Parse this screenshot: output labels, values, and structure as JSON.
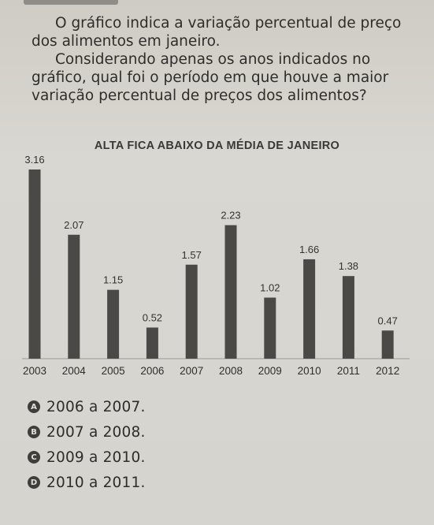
{
  "question": {
    "line1": "O gráfico indica a variação percentual de preço dos alimentos em janeiro.",
    "line2": "Considerando apenas os anos indicados no gráfico, qual foi o período em que houve a maior variação percentual de preços dos alimentos?"
  },
  "chart_data": {
    "type": "bar",
    "title": "ALTA FICA ABAIXO DA MÉDIA DE JANEIRO",
    "categories": [
      "2003",
      "2004",
      "2005",
      "2006",
      "2007",
      "2008",
      "2009",
      "2010",
      "2011",
      "2012"
    ],
    "values": [
      3.16,
      2.07,
      1.15,
      0.52,
      1.57,
      2.23,
      1.02,
      1.66,
      1.38,
      0.47
    ],
    "value_labels": [
      "3.16",
      "2.07",
      "1.15",
      "0.52",
      "1.57",
      "2.23",
      "1.02",
      "1.66",
      "1.38",
      "0.47"
    ],
    "ylim": [
      0,
      3.16
    ],
    "grid": false,
    "bar_color": "#4a4946"
  },
  "options": [
    {
      "letter": "A",
      "text": "2006 a 2007."
    },
    {
      "letter": "B",
      "text": "2007 a 2008."
    },
    {
      "letter": "C",
      "text": "2009 a 2010."
    },
    {
      "letter": "D",
      "text": "2010 a 2011."
    }
  ]
}
